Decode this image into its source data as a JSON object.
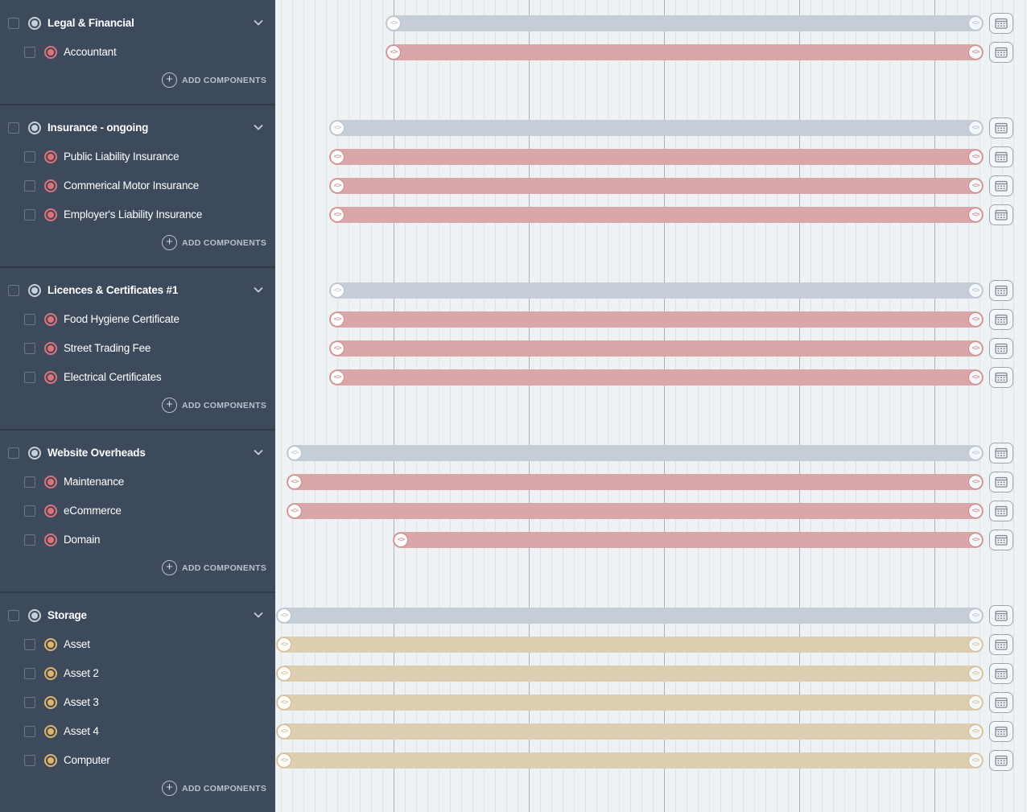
{
  "add_components_label": "ADD COMPONENTS",
  "colors": {
    "group_bar": "#c5cdd6",
    "group_bar_handle": "#b9c2cb",
    "red_bar": "#d9a7a9",
    "red_bar_handle": "#d18587",
    "tan_bar": "#ddceb1",
    "tan_bar_handle": "#d3b98a",
    "group_dot": "#c9cfd6",
    "red_dot": "#e07377",
    "tan_dot": "#e0b466"
  },
  "groups": [
    {
      "title": "Legal & Financial",
      "group_bar_start": 0.155,
      "items": [
        {
          "label": "Accountant",
          "color": "red",
          "start": 0.155
        }
      ]
    },
    {
      "title": "Insurance - ongoing",
      "group_bar_start": 0.075,
      "items": [
        {
          "label": "Public Liability Insurance",
          "color": "red",
          "start": 0.075
        },
        {
          "label": "Commerical Motor Insurance",
          "color": "red",
          "start": 0.075
        },
        {
          "label": "Employer's Liability Insurance",
          "color": "red",
          "start": 0.075
        }
      ]
    },
    {
      "title": "Licences & Certificates #1",
      "group_bar_start": 0.075,
      "items": [
        {
          "label": "Food Hygiene Certificate",
          "color": "red",
          "start": 0.075
        },
        {
          "label": "Street Trading Fee",
          "color": "red",
          "start": 0.075
        },
        {
          "label": "Electrical Certificates",
          "color": "red",
          "start": 0.075
        }
      ]
    },
    {
      "title": "Website Overheads",
      "group_bar_start": 0.015,
      "items": [
        {
          "label": "Maintenance",
          "color": "red",
          "start": 0.015
        },
        {
          "label": "eCommerce",
          "color": "red",
          "start": 0.015
        },
        {
          "label": "Domain",
          "color": "red",
          "start": 0.165
        }
      ]
    },
    {
      "title": "Storage",
      "group_bar_start": 0.0,
      "items": [
        {
          "label": "Asset",
          "color": "tan",
          "start": 0.0
        },
        {
          "label": "Asset 2",
          "color": "tan",
          "start": 0.0
        },
        {
          "label": "Asset 3",
          "color": "tan",
          "start": 0.0
        },
        {
          "label": "Asset 4",
          "color": "tan",
          "start": 0.0
        },
        {
          "label": "Computer",
          "color": "tan",
          "start": 0.0
        }
      ]
    }
  ]
}
